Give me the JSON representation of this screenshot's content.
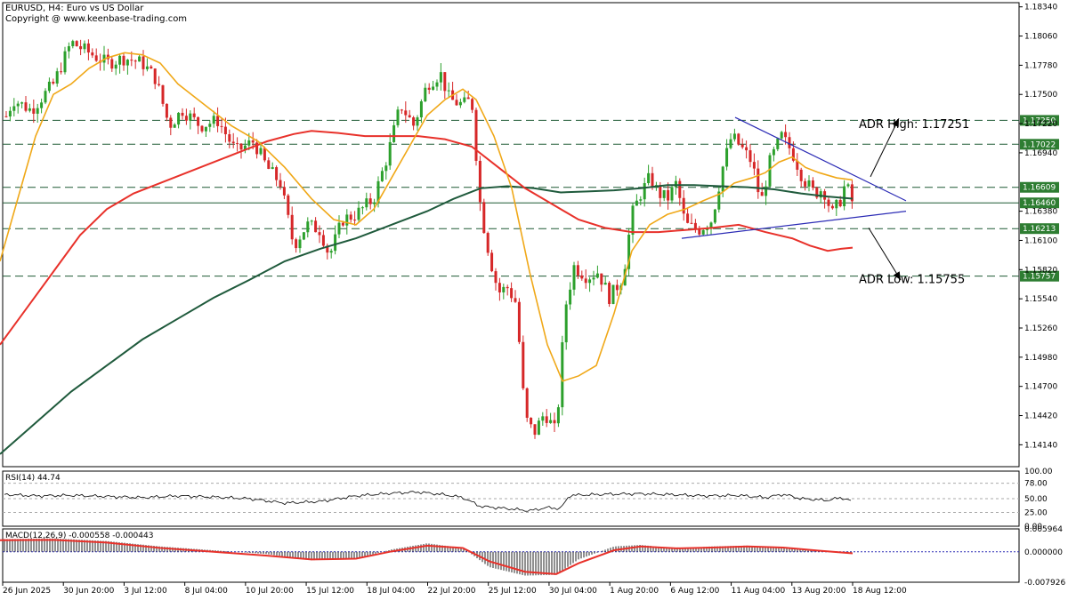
{
  "header": {
    "title": "EURUSD, H4:  Euro vs US Dollar",
    "copyright": "Copyright @ www.keenbase-trading.com"
  },
  "colors": {
    "bull": "#2ca02c",
    "bear": "#d62728",
    "ma_fast": "#f0a818",
    "ma_mid": "#e8312a",
    "ma_slow": "#1f5a3c",
    "channel": "#2b2bb5",
    "level_tag": "#2e7d32"
  },
  "chart_data": [
    {
      "type": "candlestick",
      "symbol": "EURUSD",
      "timeframe": "H4",
      "ylim": [
        1.1393,
        1.1838
      ],
      "yticks": [
        "1.18340",
        "1.18060",
        "1.17780",
        "1.17500",
        "1.17220",
        "1.16940",
        "1.16380",
        "1.16100",
        "1.15820",
        "1.15540",
        "1.15260",
        "1.14980",
        "1.14700",
        "1.14420",
        "1.14140"
      ],
      "xticks": [
        "26 Jun 2025",
        "30 Jun 20:00",
        "3 Jul 12:00",
        "8 Jul 04:00",
        "10 Jul 20:00",
        "15 Jul 12:00",
        "18 Jul 04:00",
        "22 Jul 20:00",
        "25 Jul 12:00",
        "30 Jul 04:00",
        "1 Aug 20:00",
        "6 Aug 12:00",
        "11 Aug 04:00",
        "13 Aug 20:00",
        "18 Aug 12:00"
      ],
      "close_path": [
        [
          0,
          1.1715
        ],
        [
          15,
          1.1745
        ],
        [
          35,
          1.1735
        ],
        [
          60,
          1.176
        ],
        [
          80,
          1.18
        ],
        [
          100,
          1.179
        ],
        [
          120,
          1.178
        ],
        [
          140,
          1.1785
        ],
        [
          160,
          1.178
        ],
        [
          175,
          1.1765
        ],
        [
          190,
          1.172
        ],
        [
          205,
          1.1735
        ],
        [
          225,
          1.172
        ],
        [
          245,
          1.1725
        ],
        [
          265,
          1.1695
        ],
        [
          285,
          1.1705
        ],
        [
          300,
          1.168
        ],
        [
          315,
          1.1665
        ],
        [
          330,
          1.1605
        ],
        [
          345,
          1.1625
        ],
        [
          360,
          1.162
        ],
        [
          370,
          1.1595
        ],
        [
          385,
          1.163
        ],
        [
          400,
          1.1635
        ],
        [
          420,
          1.165
        ],
        [
          435,
          1.169
        ],
        [
          450,
          1.174
        ],
        [
          465,
          1.172
        ],
        [
          480,
          1.176
        ],
        [
          495,
          1.177
        ],
        [
          505,
          1.1745
        ],
        [
          520,
          1.174
        ],
        [
          530,
          1.1745
        ],
        [
          540,
          1.164
        ],
        [
          550,
          1.1595
        ],
        [
          560,
          1.156
        ],
        [
          570,
          1.1565
        ],
        [
          580,
          1.155
        ],
        [
          590,
          1.144
        ],
        [
          600,
          1.1425
        ],
        [
          612,
          1.1445
        ],
        [
          625,
          1.1425
        ],
        [
          635,
          1.1545
        ],
        [
          645,
          1.1585
        ],
        [
          660,
          1.1575
        ],
        [
          672,
          1.158
        ],
        [
          685,
          1.1555
        ],
        [
          700,
          1.1575
        ],
        [
          710,
          1.1635
        ],
        [
          720,
          1.1655
        ],
        [
          730,
          1.167
        ],
        [
          740,
          1.1655
        ],
        [
          750,
          1.165
        ],
        [
          760,
          1.1665
        ],
        [
          770,
          1.1625
        ],
        [
          785,
          1.162
        ],
        [
          800,
          1.163
        ],
        [
          812,
          1.168
        ],
        [
          822,
          1.171
        ],
        [
          832,
          1.17
        ],
        [
          845,
          1.1685
        ],
        [
          855,
          1.1645
        ],
        [
          865,
          1.1685
        ],
        [
          878,
          1.171
        ],
        [
          890,
          1.1695
        ],
        [
          902,
          1.167
        ],
        [
          915,
          1.1655
        ],
        [
          925,
          1.166
        ],
        [
          935,
          1.1635
        ],
        [
          945,
          1.165
        ],
        [
          950,
          1.1665
        ],
        [
          958,
          1.1646
        ]
      ],
      "ma_fast": [
        [
          0,
          1.159
        ],
        [
          20,
          1.165
        ],
        [
          40,
          1.171
        ],
        [
          60,
          1.175
        ],
        [
          80,
          1.176
        ],
        [
          100,
          1.1775
        ],
        [
          120,
          1.1785
        ],
        [
          140,
          1.179
        ],
        [
          160,
          1.1788
        ],
        [
          180,
          1.178
        ],
        [
          200,
          1.176
        ],
        [
          230,
          1.174
        ],
        [
          260,
          1.172
        ],
        [
          290,
          1.1705
        ],
        [
          320,
          1.168
        ],
        [
          350,
          1.165
        ],
        [
          375,
          1.163
        ],
        [
          400,
          1.1625
        ],
        [
          420,
          1.164
        ],
        [
          440,
          1.167
        ],
        [
          460,
          1.17
        ],
        [
          480,
          1.173
        ],
        [
          500,
          1.1745
        ],
        [
          520,
          1.1755
        ],
        [
          535,
          1.1745
        ],
        [
          555,
          1.171
        ],
        [
          575,
          1.166
        ],
        [
          595,
          1.158
        ],
        [
          615,
          1.151
        ],
        [
          632,
          1.1475
        ],
        [
          650,
          1.148
        ],
        [
          670,
          1.149
        ],
        [
          690,
          1.154
        ],
        [
          710,
          1.16
        ],
        [
          730,
          1.1625
        ],
        [
          750,
          1.1635
        ],
        [
          770,
          1.164
        ],
        [
          790,
          1.1648
        ],
        [
          810,
          1.1655
        ],
        [
          825,
          1.1665
        ],
        [
          845,
          1.167
        ],
        [
          860,
          1.1675
        ],
        [
          875,
          1.1685
        ],
        [
          890,
          1.169
        ],
        [
          905,
          1.168
        ],
        [
          920,
          1.1675
        ],
        [
          940,
          1.167
        ],
        [
          958,
          1.1668
        ]
      ],
      "ma_mid": [
        [
          0,
          1.151
        ],
        [
          30,
          1.1545
        ],
        [
          60,
          1.158
        ],
        [
          90,
          1.1615
        ],
        [
          120,
          1.164
        ],
        [
          150,
          1.1655
        ],
        [
          180,
          1.1665
        ],
        [
          210,
          1.1675
        ],
        [
          240,
          1.1685
        ],
        [
          270,
          1.1695
        ],
        [
          300,
          1.1705
        ],
        [
          330,
          1.1712
        ],
        [
          350,
          1.1715
        ],
        [
          380,
          1.1713
        ],
        [
          410,
          1.171
        ],
        [
          440,
          1.171
        ],
        [
          470,
          1.171
        ],
        [
          500,
          1.1707
        ],
        [
          530,
          1.17
        ],
        [
          560,
          1.168
        ],
        [
          590,
          1.166
        ],
        [
          620,
          1.1645
        ],
        [
          650,
          1.163
        ],
        [
          680,
          1.1622
        ],
        [
          710,
          1.1618
        ],
        [
          740,
          1.1618
        ],
        [
          770,
          1.162
        ],
        [
          800,
          1.1622
        ],
        [
          830,
          1.1625
        ],
        [
          860,
          1.1618
        ],
        [
          890,
          1.1612
        ],
        [
          910,
          1.1605
        ],
        [
          930,
          1.16
        ],
        [
          945,
          1.1602
        ],
        [
          958,
          1.1603
        ]
      ],
      "ma_slow": [
        [
          0,
          1.1405
        ],
        [
          40,
          1.1435
        ],
        [
          80,
          1.1465
        ],
        [
          120,
          1.149
        ],
        [
          160,
          1.1515
        ],
        [
          200,
          1.1535
        ],
        [
          240,
          1.1555
        ],
        [
          280,
          1.1572
        ],
        [
          320,
          1.159
        ],
        [
          360,
          1.1602
        ],
        [
          400,
          1.1612
        ],
        [
          440,
          1.1625
        ],
        [
          480,
          1.1638
        ],
        [
          510,
          1.165
        ],
        [
          540,
          1.166
        ],
        [
          570,
          1.1662
        ],
        [
          600,
          1.166
        ],
        [
          630,
          1.1656
        ],
        [
          660,
          1.1657
        ],
        [
          690,
          1.1658
        ],
        [
          720,
          1.166
        ],
        [
          750,
          1.1663
        ],
        [
          780,
          1.1663
        ],
        [
          810,
          1.1662
        ],
        [
          840,
          1.1661
        ],
        [
          870,
          1.1659
        ],
        [
          900,
          1.1655
        ],
        [
          930,
          1.1652
        ],
        [
          958,
          1.165
        ]
      ],
      "levels": [
        {
          "value": 1.17251,
          "tag": "1.17250",
          "style": "dashed"
        },
        {
          "value": 1.17022,
          "tag": "1.17022",
          "style": "dashed"
        },
        {
          "value": 1.16609,
          "tag": "1.16609",
          "style": "dashed"
        },
        {
          "value": 1.1646,
          "tag": "1.16460",
          "style": "solid"
        },
        {
          "value": 1.16213,
          "tag": "1.16213",
          "style": "dashed"
        },
        {
          "value": 1.15757,
          "tag": "1.15757",
          "style": "dashed"
        }
      ],
      "channel": [
        {
          "from": [
            826,
            1.1728
          ],
          "to": [
            1018,
            1.1648
          ]
        },
        {
          "from": [
            766,
            1.1612
          ],
          "to": [
            1018,
            1.1638
          ]
        }
      ],
      "arrows": [
        {
          "from": [
            978,
            1.1671
          ],
          "to": [
            1010,
            1.1727
          ]
        },
        {
          "from": [
            976,
            1.1622
          ],
          "to": [
            1012,
            1.1572
          ]
        }
      ],
      "annotations": [
        {
          "text": "ADR High: 1.17251",
          "at": [
            965,
            1.1718
          ]
        },
        {
          "text": "ADR Low: 1.15755",
          "at": [
            965,
            1.1569
          ]
        }
      ]
    },
    {
      "type": "line",
      "name": "RSI(14) 44.74",
      "ylim": [
        0,
        100
      ],
      "yticks": [
        "100.00",
        "78.00",
        "50.00",
        "25.00",
        "0.00"
      ],
      "levels": [
        78,
        50,
        25
      ],
      "values": [
        [
          0,
          58
        ],
        [
          40,
          55
        ],
        [
          80,
          56
        ],
        [
          120,
          54
        ],
        [
          160,
          52
        ],
        [
          200,
          55
        ],
        [
          240,
          53
        ],
        [
          280,
          50
        ],
        [
          320,
          42
        ],
        [
          360,
          45
        ],
        [
          400,
          55
        ],
        [
          440,
          60
        ],
        [
          470,
          62
        ],
        [
          500,
          57
        ],
        [
          520,
          52
        ],
        [
          540,
          36
        ],
        [
          570,
          32
        ],
        [
          595,
          28
        ],
        [
          615,
          34
        ],
        [
          630,
          32
        ],
        [
          640,
          56
        ],
        [
          680,
          58
        ],
        [
          720,
          59
        ],
        [
          760,
          57
        ],
        [
          790,
          55
        ],
        [
          830,
          56
        ],
        [
          860,
          52
        ],
        [
          880,
          58
        ],
        [
          900,
          50
        ],
        [
          930,
          47
        ],
        [
          945,
          52
        ],
        [
          958,
          44.74
        ]
      ]
    },
    {
      "type": "histogram+line",
      "name": "MACD(12,26,9) -0.000558 -0.000443",
      "ylim": [
        -0.007926,
        0.005964
      ],
      "yticks": [
        "0.005964",
        "0.000000",
        "-0.007926"
      ],
      "histogram": [
        [
          0,
          0.0033
        ],
        [
          60,
          0.0035
        ],
        [
          120,
          0.0028
        ],
        [
          180,
          0.0014
        ],
        [
          240,
          0.0004
        ],
        [
          300,
          -0.0006
        ],
        [
          350,
          -0.0022
        ],
        [
          400,
          -0.0018
        ],
        [
          440,
          0.0006
        ],
        [
          480,
          0.0022
        ],
        [
          520,
          0.001
        ],
        [
          550,
          -0.004
        ],
        [
          590,
          -0.0062
        ],
        [
          625,
          -0.006
        ],
        [
          650,
          -0.002
        ],
        [
          690,
          0.0014
        ],
        [
          720,
          0.0018
        ],
        [
          760,
          0.0008
        ],
        [
          800,
          0.0014
        ],
        [
          840,
          0.0016
        ],
        [
          880,
          0.0011
        ],
        [
          920,
          0.0002
        ],
        [
          958,
          -0.0005
        ]
      ],
      "signal": [
        [
          0,
          0.003
        ],
        [
          60,
          0.0031
        ],
        [
          120,
          0.0024
        ],
        [
          180,
          0.001
        ],
        [
          240,
          0.0
        ],
        [
          300,
          -0.001
        ],
        [
          350,
          -0.002
        ],
        [
          400,
          -0.0018
        ],
        [
          440,
          0.0001
        ],
        [
          480,
          0.0016
        ],
        [
          520,
          0.001
        ],
        [
          550,
          -0.0025
        ],
        [
          590,
          -0.0052
        ],
        [
          625,
          -0.0058
        ],
        [
          650,
          -0.003
        ],
        [
          690,
          0.0004
        ],
        [
          720,
          0.0014
        ],
        [
          760,
          0.0009
        ],
        [
          800,
          0.0011
        ],
        [
          840,
          0.0014
        ],
        [
          880,
          0.0011
        ],
        [
          920,
          0.0003
        ],
        [
          958,
          -0.0004
        ]
      ]
    }
  ]
}
